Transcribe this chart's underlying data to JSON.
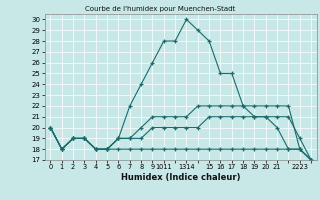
{
  "title": "Courbe de l'humidex pour Muenchen-Stadt",
  "xlabel": "Humidex (Indice chaleur)",
  "bg_color": "#c8e8e8",
  "grid_color": "#ffffff",
  "line_color": "#1a6b6b",
  "xlim": [
    -0.5,
    23.5
  ],
  "ylim": [
    17,
    30.5
  ],
  "yticks": [
    17,
    18,
    19,
    20,
    21,
    22,
    23,
    24,
    25,
    26,
    27,
    28,
    29,
    30
  ],
  "lines": [
    {
      "x": [
        0,
        1,
        2,
        3,
        4,
        5,
        6,
        7,
        8,
        9,
        10,
        11,
        12,
        13,
        14,
        15,
        16,
        17,
        18,
        19,
        20,
        21,
        22,
        23
      ],
      "y": [
        20,
        18,
        19,
        19,
        18,
        18,
        19,
        22,
        24,
        26,
        28,
        28,
        30,
        29,
        28,
        25,
        25,
        22,
        21,
        21,
        20,
        18,
        18,
        17
      ]
    },
    {
      "x": [
        0,
        1,
        2,
        3,
        4,
        5,
        6,
        7,
        8,
        9,
        10,
        11,
        12,
        13,
        14,
        15,
        16,
        17,
        18,
        19,
        20,
        21,
        22,
        23
      ],
      "y": [
        20,
        18,
        19,
        19,
        18,
        18,
        19,
        19,
        20,
        21,
        21,
        21,
        21,
        22,
        22,
        22,
        22,
        22,
        22,
        22,
        22,
        22,
        18,
        17
      ]
    },
    {
      "x": [
        0,
        1,
        2,
        3,
        4,
        5,
        6,
        7,
        8,
        9,
        10,
        11,
        12,
        13,
        14,
        15,
        16,
        17,
        18,
        19,
        20,
        21,
        22,
        23
      ],
      "y": [
        20,
        18,
        19,
        19,
        18,
        18,
        19,
        19,
        19,
        20,
        20,
        20,
        20,
        20,
        21,
        21,
        21,
        21,
        21,
        21,
        21,
        21,
        19,
        17
      ]
    },
    {
      "x": [
        0,
        1,
        2,
        3,
        4,
        5,
        6,
        7,
        8,
        9,
        10,
        11,
        12,
        13,
        14,
        15,
        16,
        17,
        18,
        19,
        20,
        21,
        22,
        23
      ],
      "y": [
        20,
        18,
        19,
        19,
        18,
        18,
        18,
        18,
        18,
        18,
        18,
        18,
        18,
        18,
        18,
        18,
        18,
        18,
        18,
        18,
        18,
        18,
        18,
        17
      ]
    }
  ],
  "x_tick_labels": [
    "0",
    "1",
    "2",
    "3",
    "4",
    "5",
    "6",
    "7",
    "8",
    "9",
    "1011",
    "1314",
    "16",
    "17",
    "18",
    "19",
    "20",
    "21",
    "2223",
    "",
    ""
  ]
}
